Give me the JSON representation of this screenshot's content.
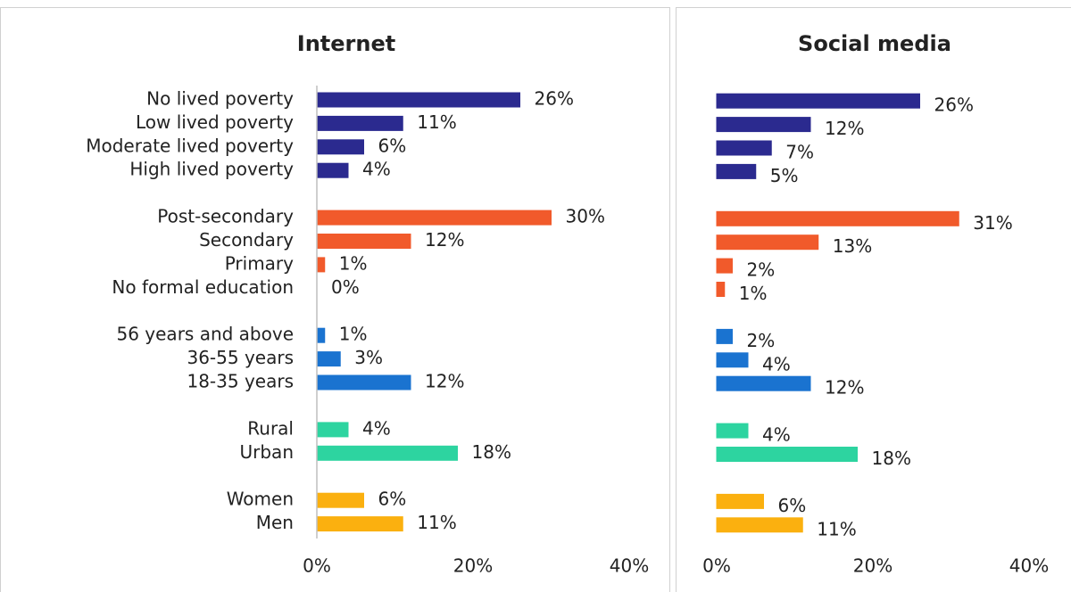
{
  "chart_data": [
    {
      "type": "bar",
      "title": "Internet",
      "groups": [
        {
          "color": "#2b2a8f",
          "categories": [
            "No lived poverty",
            "Low lived poverty",
            "Moderate lived poverty",
            "High lived poverty"
          ],
          "values": [
            26,
            11,
            6,
            4
          ],
          "value_labels": [
            "26%",
            "11%",
            "6%",
            "4%"
          ]
        },
        {
          "color": "#f15a2b",
          "categories": [
            "Post-secondary",
            "Secondary",
            "Primary",
            "No formal education"
          ],
          "values": [
            30,
            12,
            1,
            0
          ],
          "value_labels": [
            "30%",
            "12%",
            "1%",
            "0%"
          ]
        },
        {
          "color": "#1a73d0",
          "categories": [
            "56 years and above",
            "36-55 years",
            "18-35 years"
          ],
          "values": [
            1,
            3,
            12
          ],
          "value_labels": [
            "1%",
            "3%",
            "12%"
          ]
        },
        {
          "color": "#2dd4a0",
          "categories": [
            "Rural",
            "Urban"
          ],
          "values": [
            4,
            18
          ],
          "value_labels": [
            "4%",
            "18%"
          ]
        },
        {
          "color": "#fbb00f",
          "categories": [
            "Women",
            "Men"
          ],
          "values": [
            6,
            11
          ],
          "value_labels": [
            "6%",
            "11%"
          ]
        }
      ],
      "xlim": [
        0,
        40
      ],
      "xticks": [
        {
          "value": 0,
          "label": "0%"
        },
        {
          "value": 20,
          "label": "20%"
        },
        {
          "value": 40,
          "label": "40%"
        }
      ]
    },
    {
      "type": "bar",
      "title": "Social media",
      "groups": [
        {
          "color": "#2b2a8f",
          "values": [
            26,
            12,
            7,
            5
          ],
          "value_labels": [
            "26%",
            "12%",
            "7%",
            "5%"
          ]
        },
        {
          "color": "#f15a2b",
          "values": [
            31,
            13,
            2,
            1
          ],
          "value_labels": [
            "31%",
            "13%",
            "2%",
            "1%"
          ]
        },
        {
          "color": "#1a73d0",
          "values": [
            2,
            4,
            12
          ],
          "value_labels": [
            "2%",
            "4%",
            "12%"
          ]
        },
        {
          "color": "#2dd4a0",
          "values": [
            4,
            18
          ],
          "value_labels": [
            "4%",
            "18%"
          ]
        },
        {
          "color": "#fbb00f",
          "values": [
            6,
            11
          ],
          "value_labels": [
            "6%",
            "11%"
          ]
        }
      ],
      "xlim": [
        0,
        40
      ],
      "xticks": [
        {
          "value": 0,
          "label": "0%"
        },
        {
          "value": 20,
          "label": "20%"
        },
        {
          "value": 40,
          "label": "40%"
        }
      ]
    }
  ]
}
